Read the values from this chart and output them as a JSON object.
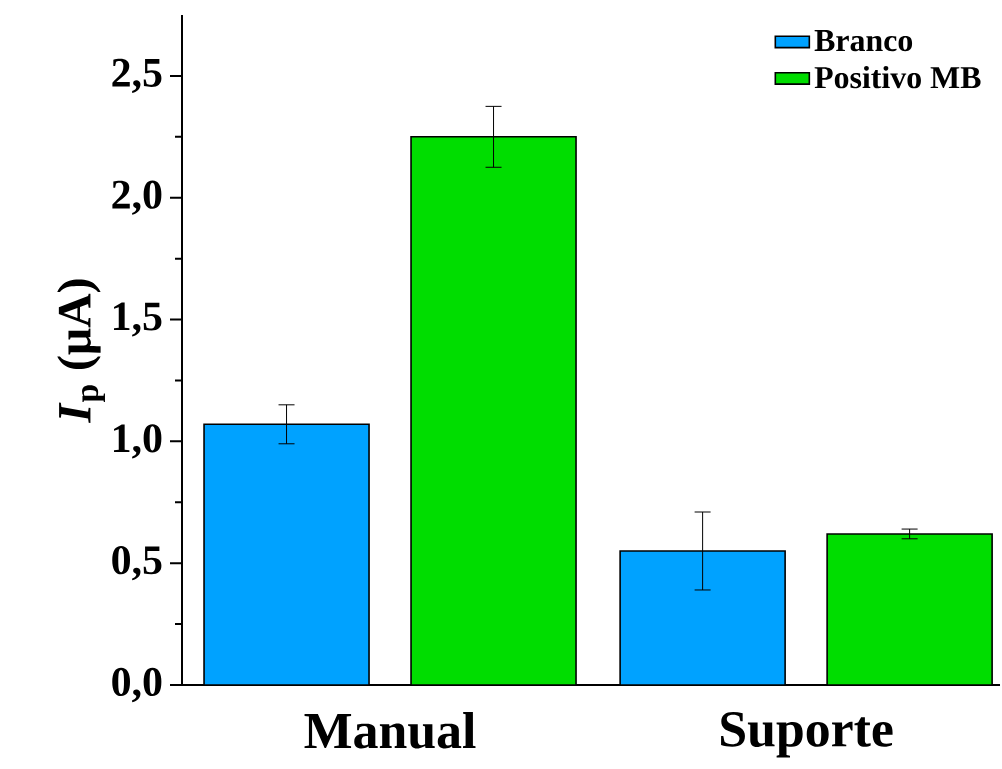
{
  "chart_data": {
    "type": "bar",
    "ylabel": "*I*$_{p}$ (μA)",
    "categories": [
      "Manual",
      "Suporte"
    ],
    "series": [
      {
        "name": "Branco",
        "color": "#00a2ff",
        "values": [
          1.07,
          0.55
        ],
        "errors": [
          0.08,
          0.16
        ]
      },
      {
        "name": "Positivo MB",
        "color": "#00dd00",
        "values": [
          2.25,
          0.62
        ],
        "errors": [
          0.125,
          0.02
        ]
      }
    ],
    "ylim": [
      0,
      2.75
    ],
    "yticks": [
      {
        "value": 0,
        "label": "0,0"
      },
      {
        "value": 0.5,
        "label": "0,5"
      },
      {
        "value": 1.0,
        "label": "1,0"
      },
      {
        "value": 1.5,
        "label": "1,5"
      },
      {
        "value": 2.0,
        "label": "2,0"
      },
      {
        "value": 2.5,
        "label": "2,5"
      }
    ],
    "legend": "top right"
  }
}
